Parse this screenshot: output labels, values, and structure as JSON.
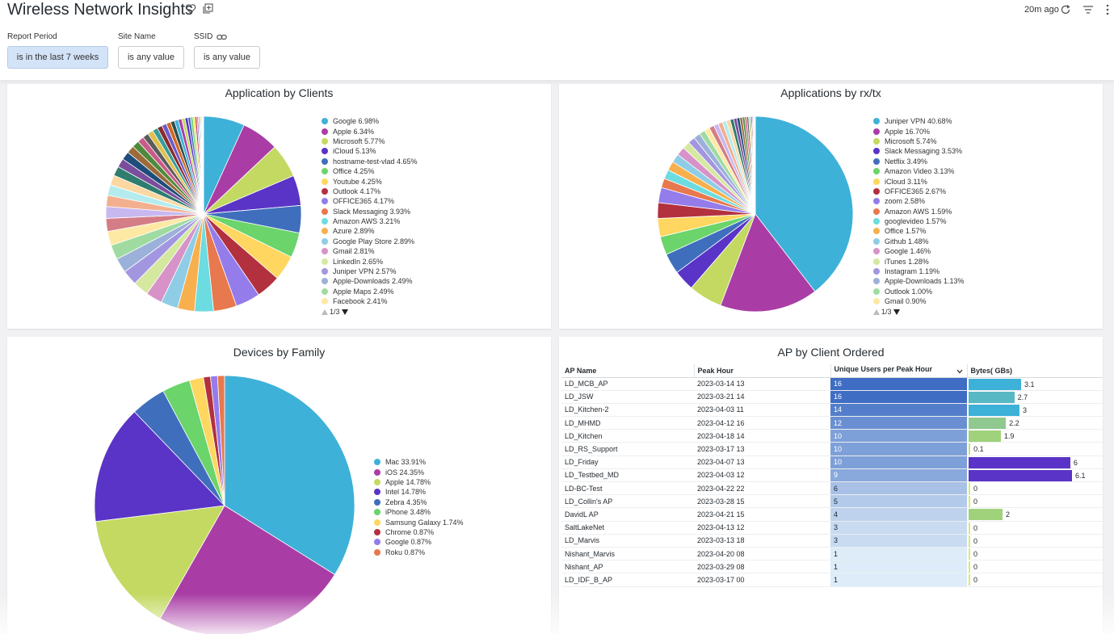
{
  "header": {
    "title": "Wireless Network Insights",
    "updated": "20m ago",
    "icons": [
      "heart-icon",
      "copy-icon",
      "refresh-icon",
      "filter-icon",
      "more-vertical-icon"
    ]
  },
  "filters": [
    {
      "label": "Report Period",
      "value": "is in the last 7 weeks",
      "active": true
    },
    {
      "label": "Site Name",
      "value": "is any value",
      "active": false
    },
    {
      "label": "SSID",
      "value": "is any value",
      "active": false
    }
  ],
  "colors": {
    "accent_active_filter": "#d3e3f8",
    "pie_palette": [
      "#3eb1d8",
      "#a93da5",
      "#c3d962",
      "#5a34c6",
      "#3f6fbc",
      "#6bd46b",
      "#ffd760",
      "#b3303f",
      "#947ceb",
      "#e8784d",
      "#6cdce0",
      "#f7b04d",
      "#8fcde6",
      "#d792c8",
      "#d5e8a0",
      "#a396e0",
      "#9cb1d9",
      "#9fdba0",
      "#fde9a4",
      "#d47d86",
      "#c8b8f0",
      "#f2b08f",
      "#b4ecee",
      "#fbd7a1",
      "#2e7d6e",
      "#7a4e9c",
      "#1f4d7a",
      "#9c6b3a",
      "#4f8a3c",
      "#c95b8a",
      "#5c5c5c",
      "#e0c04a",
      "#3a9b9b",
      "#8a2b2b",
      "#6a5acd",
      "#d2691e",
      "#2f4f4f"
    ]
  },
  "charts": {
    "app_by_clients": {
      "title": "Application by Clients",
      "pager": "1/3",
      "legend": [
        "Google 6.98%",
        "Apple 6.34%",
        "Microsoft 5.77%",
        "iCloud 5.13%",
        "hostname-test-vlad 4.65%",
        "Office 4.25%",
        "Youtube 4.25%",
        "Outlook 4.17%",
        "OFFICE365 4.17%",
        "Slack Messaging 3.93%",
        "Amazon AWS 3.21%",
        "Azure 2.89%",
        "Google Play Store 2.89%",
        "Gmail 2.81%",
        "LinkedIn 2.65%",
        "Juniper VPN 2.57%",
        "Apple-Downloads 2.49%",
        "Apple Maps 2.49%",
        "Facebook 2.41%"
      ]
    },
    "apps_by_rxtx": {
      "title": "Applications by rx/tx",
      "pager": "1/3",
      "legend": [
        "Juniper VPN 40.68%",
        "Apple 16.70%",
        "Microsoft 5.74%",
        "Slack Messaging 3.53%",
        "Netflix 3.49%",
        "Amazon Video 3.13%",
        "iCloud 3.11%",
        "OFFICE365 2.67%",
        "zoom 2.58%",
        "Amazon AWS 1.59%",
        "googlevideo 1.57%",
        "Office 1.57%",
        "Github 1.48%",
        "Google 1.46%",
        "iTunes 1.28%",
        "Instagram 1.19%",
        "Apple-Downloads 1.13%",
        "Outlook 1.00%",
        "Gmail 0.90%"
      ]
    },
    "devices_by_family": {
      "title": "Devices by Family",
      "legend": [
        "Mac 33.91%",
        "iOS 24.35%",
        "Apple 14.78%",
        "Intel 14.78%",
        "Zebra 4.35%",
        "iPhone 3.48%",
        "Samsung Galaxy 1.74%",
        "Chrome 0.87%",
        "Google 0.87%",
        "Roku 0.87%"
      ]
    }
  },
  "chart_data": [
    {
      "type": "pie",
      "title": "Application by Clients",
      "categories": [
        "Google",
        "Apple",
        "Microsoft",
        "iCloud",
        "hostname-test-vlad",
        "Office",
        "Youtube",
        "Outlook",
        "OFFICE365",
        "Slack Messaging",
        "Amazon AWS",
        "Azure",
        "Google Play Store",
        "Gmail",
        "LinkedIn",
        "Juniper VPN",
        "Apple-Downloads",
        "Apple Maps",
        "Facebook"
      ],
      "values": [
        6.98,
        6.34,
        5.77,
        5.13,
        4.65,
        4.25,
        4.25,
        4.17,
        4.17,
        3.93,
        3.21,
        2.89,
        2.89,
        2.81,
        2.65,
        2.57,
        2.49,
        2.49,
        2.41
      ],
      "remaining_slices_approx": [
        2.2,
        2.0,
        1.9,
        1.8,
        1.7,
        1.6,
        1.5,
        1.4,
        1.3,
        1.2,
        1.1,
        1.0,
        0.95,
        0.9,
        0.85,
        0.8,
        0.75,
        0.7,
        0.65,
        0.6,
        0.55,
        0.5,
        0.45,
        0.4,
        0.35,
        0.3,
        0.25,
        0.2,
        0.18,
        0.16,
        0.14,
        0.12,
        0.1
      ],
      "legend_position": "right"
    },
    {
      "type": "pie",
      "title": "Applications by rx/tx",
      "categories": [
        "Juniper VPN",
        "Apple",
        "Microsoft",
        "Slack Messaging",
        "Netflix",
        "Amazon Video",
        "iCloud",
        "OFFICE365",
        "zoom",
        "Amazon AWS",
        "googlevideo",
        "Office",
        "Github",
        "Google",
        "iTunes",
        "Instagram",
        "Apple-Downloads",
        "Outlook",
        "Gmail"
      ],
      "values": [
        40.68,
        16.7,
        5.74,
        3.53,
        3.49,
        3.13,
        3.11,
        2.67,
        2.58,
        1.59,
        1.57,
        1.57,
        1.48,
        1.46,
        1.28,
        1.19,
        1.13,
        1.0,
        0.9
      ],
      "remaining_slices_approx": [
        0.85,
        0.8,
        0.75,
        0.7,
        0.65,
        0.6,
        0.55,
        0.5,
        0.45,
        0.4,
        0.35,
        0.3,
        0.25,
        0.2,
        0.18,
        0.15,
        0.12,
        0.1,
        0.08,
        0.06
      ],
      "legend_position": "right"
    },
    {
      "type": "pie",
      "title": "Devices by Family",
      "categories": [
        "Mac",
        "iOS",
        "Apple",
        "Intel",
        "Zebra",
        "iPhone",
        "Samsung Galaxy",
        "Chrome",
        "Google",
        "Roku"
      ],
      "values": [
        33.91,
        24.35,
        14.78,
        14.78,
        4.35,
        3.48,
        1.74,
        0.87,
        0.87,
        0.87
      ],
      "legend_position": "right"
    },
    {
      "type": "table",
      "title": "AP by Client Ordered",
      "columns": [
        "AP Name",
        "Peak Hour",
        "Unique Users per Peak Hour",
        "Bytes( GBs)"
      ],
      "rows": [
        [
          "LD_MCB_AP",
          "2023-03-14 13",
          16,
          3.1
        ],
        [
          "LD_JSW",
          "2023-03-21 14",
          16,
          2.7
        ],
        [
          "LD_Kitchen-2",
          "2023-04-03 11",
          14,
          3
        ],
        [
          "LD_MHMD",
          "2023-04-12 16",
          12,
          2.2
        ],
        [
          "LD_Kitchen",
          "2023-04-18 14",
          10,
          1.9
        ],
        [
          "LD_RS_Support",
          "2023-03-17 13",
          10,
          0.1
        ],
        [
          "LD_Friday",
          "2023-04-07 13",
          10,
          6
        ],
        [
          "LD_Testbed_MD",
          "2023-04-03 12",
          9,
          6.1
        ],
        [
          "LD-BC-Test",
          "2023-04-22 22",
          6,
          0
        ],
        [
          "LD_Collin's AP",
          "2023-03-28 15",
          5,
          0
        ],
        [
          "DavidL AP",
          "2023-04-21 15",
          4,
          2
        ],
        [
          "SaltLakeNet",
          "2023-04-13 12",
          3,
          0
        ],
        [
          "LD_Marvis",
          "2023-03-13 18",
          3,
          0
        ],
        [
          "Nishant_Marvis",
          "2023-04-20 08",
          1,
          0
        ],
        [
          "Nishant_AP",
          "2023-03-29 08",
          1,
          0
        ],
        [
          "LD_IDF_B_AP",
          "2023-03-17 00",
          1,
          0
        ]
      ],
      "bytes_bar_colors": [
        "#3eb1d8",
        "#58b8c4",
        "#3eb1d8",
        "#8fc98f",
        "#9fd27a",
        "#c8e07a",
        "#5a34c6",
        "#5a34c6",
        "#d9e870",
        "#d9e870",
        "#9fd27a",
        "#d9e870",
        "#d9e870",
        "#d9e870",
        "#d9e870",
        "#d9e870"
      ],
      "sorted_by": "Unique Users per Peak Hour"
    }
  ]
}
